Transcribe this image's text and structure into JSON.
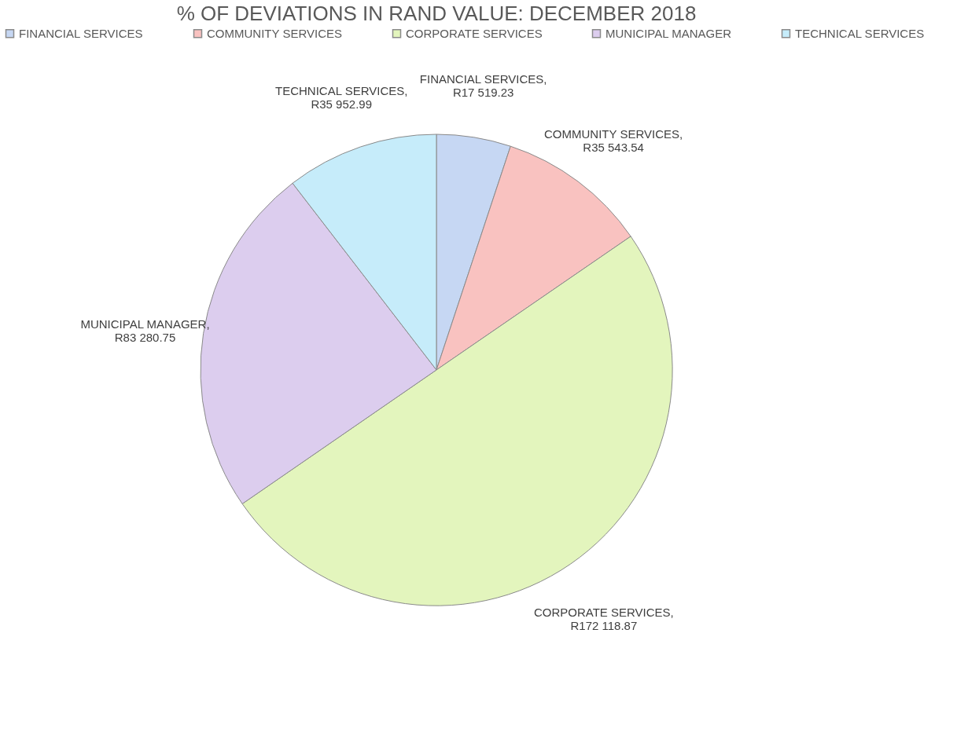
{
  "chart_data": {
    "type": "pie",
    "title": "% OF DEVIATIONS IN RAND VALUE:  DECEMBER 2018",
    "categories": [
      "FINANCIAL SERVICES",
      "COMMUNITY SERVICES",
      "CORPORATE SERVICES",
      "MUNICIPAL MANAGER",
      "TECHNICAL SERVICES"
    ],
    "values": [
      17519.23,
      35543.54,
      172118.87,
      83280.75,
      35952.99
    ],
    "value_labels": [
      "FINANCIAL SERVICES,\nR17 519.23",
      "COMMUNITY SERVICES,\nR35 543.54",
      "CORPORATE SERVICES,\nR172 118.87",
      "MUNICIPAL MANAGER,\nR83 280.75",
      "TECHNICAL SERVICES,\nR35 952.99"
    ],
    "colors": [
      "#c6d7f3",
      "#f9c2c0",
      "#e3f5bd",
      "#dccdee",
      "#c6ecfa"
    ],
    "legend": "top"
  }
}
